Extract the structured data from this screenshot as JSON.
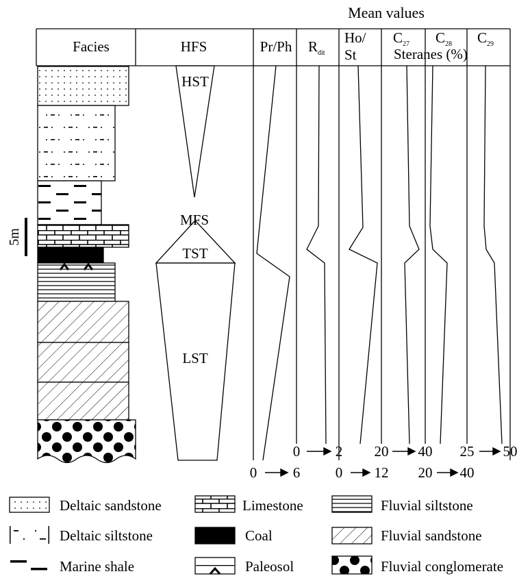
{
  "header": {
    "mean_values": "Mean values",
    "facies": "Facies",
    "hfs": "HFS",
    "prph": "Pr/Ph",
    "rdit_main": "R",
    "rdit_sub": "dit",
    "host_1": "Ho/",
    "host_2": "St",
    "c27_main": "C",
    "c27_sub": "27",
    "c28_main": "C",
    "c28_sub": "28",
    "c29_main": "C",
    "c29_sub": "29",
    "steranes": "Steranes (%)"
  },
  "hfs_labels": {
    "hst": "HST",
    "mfs": "MFS",
    "tst": "TST",
    "lst": "LST"
  },
  "scale_label": "5m",
  "scales": {
    "rdit": {
      "from": "0",
      "to": "2"
    },
    "c27": {
      "from": "20",
      "to": "40"
    },
    "c29": {
      "from": "25",
      "to": "50"
    },
    "prph": {
      "from": "0",
      "to": "6"
    },
    "host": {
      "from": "0",
      "to": "12"
    },
    "c28": {
      "from": "20",
      "to": "40"
    }
  },
  "legend": [
    {
      "label": "Deltaic sandstone"
    },
    {
      "label": "Limestone"
    },
    {
      "label": "Fluvial siltstone"
    },
    {
      "label": "Deltaic siltstone"
    },
    {
      "label": "Coal"
    },
    {
      "label": "Fluvial sandstone"
    },
    {
      "label": "Marine shale"
    },
    {
      "label": "Paleosol"
    },
    {
      "label": "Fluvial conglomerate"
    }
  ]
}
